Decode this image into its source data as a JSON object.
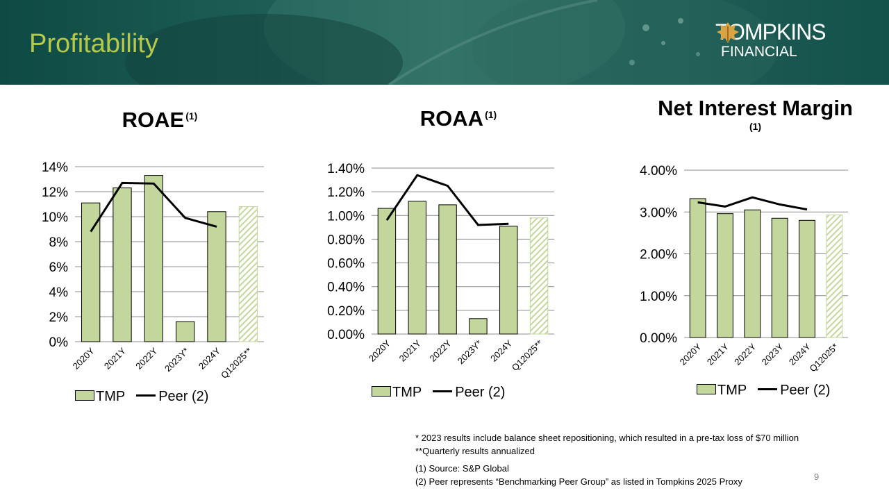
{
  "header": {
    "title": "Profitability",
    "logo_main": "TOMPKINS",
    "logo_sub": "FINANCIAL"
  },
  "colors": {
    "bar": "#c3d69b",
    "header_title": "#b5c94a",
    "peer_line": "#000000"
  },
  "charts": [
    {
      "title": "ROAE",
      "note": "(1)"
    },
    {
      "title": "ROAA",
      "note": "(1)"
    },
    {
      "title": "Net Interest Margin",
      "note": "(1)"
    }
  ],
  "legend": {
    "bar_label": "TMP",
    "line_label": "Peer (2)"
  },
  "chart_data": [
    {
      "type": "bar",
      "title": "ROAE (1)",
      "categories": [
        "2020Y",
        "2021Y",
        "2022Y",
        "2023Y*",
        "2024Y",
        "Q12025**"
      ],
      "yticks": [
        "0%",
        "2%",
        "4%",
        "6%",
        "8%",
        "10%",
        "12%",
        "14%"
      ],
      "ylim": [
        0,
        14
      ],
      "series": [
        {
          "name": "TMP",
          "type": "bar",
          "values": [
            11.1,
            12.3,
            13.3,
            1.6,
            10.4,
            10.8
          ],
          "hatched_last": true
        },
        {
          "name": "Peer (2)",
          "type": "line",
          "values": [
            8.8,
            12.7,
            12.65,
            9.9,
            9.2,
            null
          ]
        }
      ]
    },
    {
      "type": "bar",
      "title": "ROAA(1)",
      "categories": [
        "2020Y",
        "2021Y",
        "2022Y",
        "2023Y*",
        "2024Y",
        "Q12025**"
      ],
      "yticks": [
        "0.00%",
        "0.20%",
        "0.40%",
        "0.60%",
        "0.80%",
        "1.00%",
        "1.20%",
        "1.40%"
      ],
      "ylim": [
        0,
        1.4
      ],
      "series": [
        {
          "name": "TMP",
          "type": "bar",
          "values": [
            1.06,
            1.12,
            1.09,
            0.13,
            0.91,
            0.98
          ],
          "hatched_last": true
        },
        {
          "name": "Peer (2)",
          "type": "line",
          "values": [
            0.96,
            1.34,
            1.25,
            0.92,
            0.93,
            null
          ]
        }
      ]
    },
    {
      "type": "bar",
      "title": "Net Interest Margin (1)",
      "categories": [
        "2020Y",
        "2021Y",
        "2022Y",
        "2023Y",
        "2024Y",
        "Q12025*"
      ],
      "yticks": [
        "0.00%",
        "1.00%",
        "2.00%",
        "3.00%",
        "4.00%"
      ],
      "ylim": [
        0,
        4
      ],
      "series": [
        {
          "name": "TMP",
          "type": "bar",
          "values": [
            3.32,
            2.96,
            3.05,
            2.85,
            2.8,
            2.93
          ],
          "hatched_last": true
        },
        {
          "name": "Peer (2)",
          "type": "line",
          "values": [
            3.23,
            3.13,
            3.35,
            3.18,
            3.06,
            null
          ]
        }
      ]
    }
  ],
  "footnotes": {
    "line1": "* 2023 results include balance sheet repositioning, which resulted in a pre-tax loss of $70 million",
    "line2": "**Quarterly results annualized",
    "line3": "(1) Source: S&P Global",
    "line4": "(2) Peer represents “Benchmarking Peer Group” as listed in Tompkins 2025 Proxy"
  },
  "page_number": "9"
}
